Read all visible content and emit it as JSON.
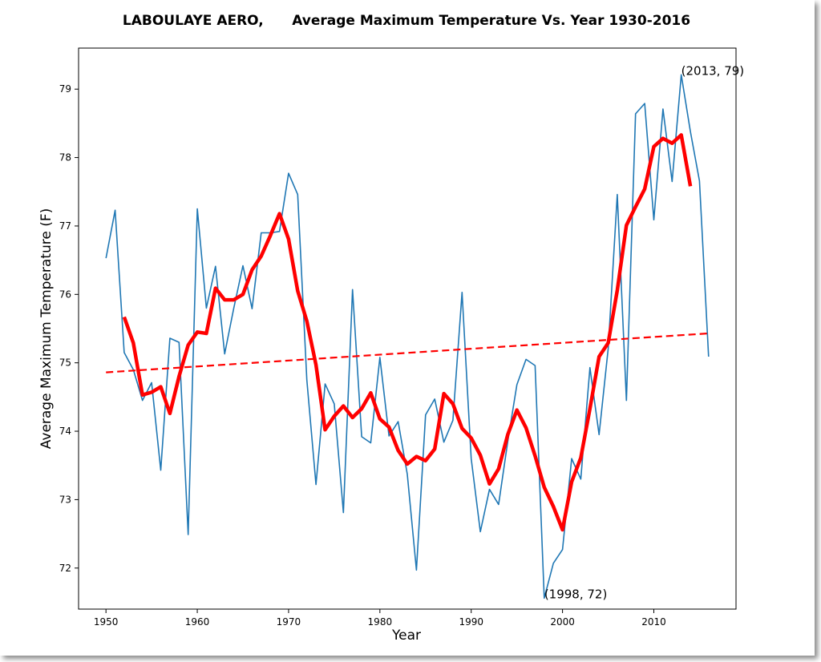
{
  "chart_data": {
    "type": "line",
    "title": "LABOULAYE AERO,      Average Maximum Temperature Vs. Year 1930-2016",
    "xlabel": "Year",
    "ylabel": "Average Maximum Temperature (F)",
    "xlim": [
      1947,
      2019
    ],
    "ylim": [
      71.4,
      79.6
    ],
    "xticks": [
      1950,
      1960,
      1970,
      1980,
      1990,
      2000,
      2010
    ],
    "yticks": [
      72,
      73,
      74,
      75,
      76,
      77,
      78,
      79
    ],
    "grid": false,
    "colors": {
      "annual": "#1f77b4",
      "smooth": "#ff0000",
      "trend": "#ff0000"
    },
    "series": [
      {
        "style": "annual",
        "x": [
          1950,
          1951,
          1952,
          1953,
          1954,
          1955,
          1956,
          1957,
          1958,
          1959,
          1960,
          1961,
          1962,
          1963,
          1964,
          1965,
          1966,
          1967,
          1968,
          1969,
          1970,
          1971,
          1972,
          1973,
          1974,
          1975,
          1976,
          1977,
          1978,
          1979,
          1980,
          1981,
          1982,
          1983,
          1984,
          1985,
          1986,
          1987,
          1988,
          1989,
          1990,
          1991,
          1992,
          1993,
          1994,
          1995,
          1996,
          1997,
          1998,
          1999,
          2000,
          2001,
          2002,
          2003,
          2004,
          2005,
          2006,
          2007,
          2008,
          2009,
          2010,
          2011,
          2012,
          2013,
          2014,
          2015,
          2016
        ],
        "values": [
          76.53,
          77.23,
          75.15,
          74.9,
          74.45,
          74.71,
          73.43,
          75.36,
          75.3,
          72.49,
          77.25,
          75.8,
          76.41,
          75.13,
          75.8,
          76.42,
          75.79,
          76.9,
          76.9,
          76.92,
          77.77,
          77.46,
          74.75,
          73.22,
          74.69,
          74.4,
          72.81,
          76.07,
          73.92,
          73.83,
          75.08,
          73.93,
          74.14,
          73.37,
          71.97,
          74.24,
          74.47,
          73.84,
          74.16,
          76.03,
          73.6,
          72.53,
          73.15,
          72.93,
          73.85,
          74.68,
          75.05,
          74.96,
          71.56,
          72.07,
          72.27,
          73.6,
          73.3,
          74.93,
          73.95,
          75.21,
          77.46,
          74.45,
          78.64,
          78.79,
          77.09,
          78.71,
          77.65,
          79.21,
          78.38,
          77.66,
          75.09
        ]
      },
      {
        "style": "smooth",
        "x": [
          1952,
          1953,
          1954,
          1955,
          1956,
          1957,
          1958,
          1959,
          1960,
          1961,
          1962,
          1963,
          1964,
          1965,
          1966,
          1967,
          1968,
          1969,
          1970,
          1971,
          1972,
          1973,
          1974,
          1975,
          1976,
          1977,
          1978,
          1979,
          1980,
          1981,
          1982,
          1983,
          1984,
          1985,
          1986,
          1987,
          1988,
          1989,
          1990,
          1991,
          1992,
          1993,
          1994,
          1995,
          1996,
          1997,
          1998,
          1999,
          2000,
          2001,
          2002,
          2003,
          2004,
          2005,
          2006,
          2007,
          2008,
          2009,
          2010,
          2011,
          2012,
          2013,
          2014
        ],
        "values": [
          75.67,
          75.29,
          74.53,
          74.57,
          74.65,
          74.26,
          74.8,
          75.26,
          75.45,
          75.43,
          76.09,
          75.92,
          75.92,
          76.0,
          76.36,
          76.56,
          76.86,
          77.18,
          76.81,
          76.05,
          75.61,
          74.97,
          74.02,
          74.22,
          74.37,
          74.2,
          74.33,
          74.56,
          74.18,
          74.06,
          73.72,
          73.52,
          73.63,
          73.57,
          73.74,
          74.55,
          74.4,
          74.04,
          73.9,
          73.65,
          73.23,
          73.45,
          73.95,
          74.31,
          74.05,
          73.64,
          73.18,
          72.9,
          72.56,
          73.26,
          73.61,
          74.33,
          75.09,
          75.29,
          76.06,
          77.01,
          77.28,
          77.54,
          78.16,
          78.28,
          78.21,
          78.33,
          77.58
        ]
      },
      {
        "style": "trend",
        "x": [
          1950,
          2016
        ],
        "values": [
          74.86,
          75.43
        ]
      }
    ],
    "annotations": [
      {
        "x": 2013,
        "y": 79.21,
        "text": "(2013, 79)"
      },
      {
        "x": 1998,
        "y": 71.56,
        "text": "(1998, 72)"
      }
    ]
  }
}
